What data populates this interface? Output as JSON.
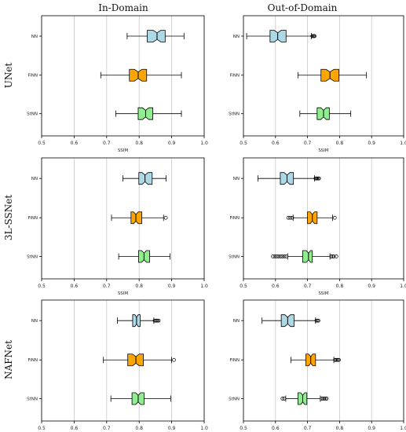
{
  "figure": {
    "column_titles": [
      "In-Domain",
      "Out-of-Domain"
    ],
    "row_titles": [
      "UNet",
      "3L-SSNet",
      "NAFNet"
    ]
  },
  "chart_data": [
    {
      "type": "boxplot",
      "model": "UNet",
      "domain": "In-Domain",
      "xlabel": "SSIM",
      "xlim": [
        0.5,
        1.0
      ],
      "xticks": [
        "0.5",
        "0.6",
        "0.7",
        "0.8",
        "0.9",
        "1.0"
      ],
      "grid": "vertical",
      "categories": [
        "NN",
        "FiNN",
        "StNN"
      ],
      "colors": [
        "#add8e6",
        "#ffa500",
        "#90ee90"
      ],
      "boxes": [
        {
          "label": "NN",
          "whislo": 0.763,
          "q1": 0.825,
          "med": 0.855,
          "q3": 0.88,
          "whishi": 0.938,
          "fliers": []
        },
        {
          "label": "FiNN",
          "whislo": 0.682,
          "q1": 0.77,
          "med": 0.797,
          "q3": 0.823,
          "whishi": 0.93,
          "fliers": []
        },
        {
          "label": "StNN",
          "whislo": 0.728,
          "q1": 0.797,
          "med": 0.82,
          "q3": 0.842,
          "whishi": 0.93,
          "fliers": []
        }
      ]
    },
    {
      "type": "boxplot",
      "model": "UNet",
      "domain": "Out-of-Domain",
      "xlabel": "SSIM",
      "xlim": [
        0.5,
        1.0
      ],
      "xticks": [
        "0.5",
        "0.6",
        "0.7",
        "0.8",
        "0.9",
        "1.0"
      ],
      "grid": "vertical",
      "categories": [
        "NN",
        "FiNN",
        "StNN"
      ],
      "colors": [
        "#add8e6",
        "#ffa500",
        "#90ee90"
      ],
      "boxes": [
        {
          "label": "NN",
          "whislo": 0.51,
          "q1": 0.583,
          "med": 0.607,
          "q3": 0.633,
          "whishi": 0.712,
          "fliers": [
            0.715,
            0.718,
            0.72,
            0.722
          ]
        },
        {
          "label": "FiNN",
          "whislo": 0.67,
          "q1": 0.742,
          "med": 0.77,
          "q3": 0.798,
          "whishi": 0.884,
          "fliers": []
        },
        {
          "label": "StNN",
          "whislo": 0.676,
          "q1": 0.73,
          "med": 0.75,
          "q3": 0.768,
          "whishi": 0.835,
          "fliers": []
        }
      ]
    },
    {
      "type": "boxplot",
      "model": "3L-SSNet",
      "domain": "In-Domain",
      "xlabel": "SSIM",
      "xlim": [
        0.5,
        1.0
      ],
      "xticks": [
        "0.5",
        "0.6",
        "0.7",
        "0.8",
        "0.9",
        "1.0"
      ],
      "grid": "vertical",
      "categories": [
        "NN",
        "FiNN",
        "StNN"
      ],
      "colors": [
        "#add8e6",
        "#ffa500",
        "#90ee90"
      ],
      "boxes": [
        {
          "label": "NN",
          "whislo": 0.75,
          "q1": 0.799,
          "med": 0.818,
          "q3": 0.84,
          "whishi": 0.883,
          "fliers": []
        },
        {
          "label": "FiNN",
          "whislo": 0.715,
          "q1": 0.775,
          "med": 0.79,
          "q3": 0.808,
          "whishi": 0.875,
          "fliers": [
            0.882
          ]
        },
        {
          "label": "StNN",
          "whislo": 0.737,
          "q1": 0.798,
          "med": 0.815,
          "q3": 0.832,
          "whishi": 0.895,
          "fliers": []
        }
      ]
    },
    {
      "type": "boxplot",
      "model": "3L-SSNet",
      "domain": "Out-of-Domain",
      "xlabel": "SSIM",
      "xlim": [
        0.5,
        1.0
      ],
      "xticks": [
        "0.5",
        "0.6",
        "0.7",
        "0.8",
        "0.9",
        "1.0"
      ],
      "grid": "vertical",
      "categories": [
        "NN",
        "FiNN",
        "StNN"
      ],
      "colors": [
        "#add8e6",
        "#ffa500",
        "#90ee90"
      ],
      "boxes": [
        {
          "label": "NN",
          "whislo": 0.545,
          "q1": 0.615,
          "med": 0.636,
          "q3": 0.656,
          "whishi": 0.722,
          "fliers": [
            0.725,
            0.728,
            0.73,
            0.733,
            0.736
          ]
        },
        {
          "label": "FiNN",
          "whislo": 0.655,
          "q1": 0.7,
          "med": 0.715,
          "q3": 0.73,
          "whishi": 0.778,
          "fliers": [
            0.64,
            0.646,
            0.652,
            0.785
          ]
        },
        {
          "label": "StNN",
          "whislo": 0.638,
          "q1": 0.685,
          "med": 0.703,
          "q3": 0.715,
          "whishi": 0.77,
          "fliers": [
            0.592,
            0.598,
            0.604,
            0.61,
            0.616,
            0.622,
            0.628,
            0.634,
            0.774,
            0.778,
            0.782,
            0.79
          ]
        }
      ]
    },
    {
      "type": "boxplot",
      "model": "NAFNet",
      "domain": "In-Domain",
      "xlabel": "SSIM",
      "xlim": [
        0.5,
        1.0
      ],
      "xticks": [
        "0.5",
        "0.6",
        "0.7",
        "0.8",
        "0.9",
        "1.0"
      ],
      "grid": "vertical",
      "categories": [
        "NN",
        "FiNN",
        "StNN"
      ],
      "colors": [
        "#add8e6",
        "#ffa500",
        "#90ee90"
      ],
      "boxes": [
        {
          "label": "NN",
          "whislo": 0.733,
          "q1": 0.78,
          "med": 0.792,
          "q3": 0.803,
          "whishi": 0.845,
          "fliers": [
            0.848,
            0.851,
            0.854,
            0.857,
            0.86
          ]
        },
        {
          "label": "FiNN",
          "whislo": 0.69,
          "q1": 0.765,
          "med": 0.79,
          "q3": 0.813,
          "whishi": 0.9,
          "fliers": [
            0.907
          ]
        },
        {
          "label": "StNN",
          "whislo": 0.713,
          "q1": 0.778,
          "med": 0.797,
          "q3": 0.815,
          "whishi": 0.897,
          "fliers": []
        }
      ]
    },
    {
      "type": "boxplot",
      "model": "NAFNet",
      "domain": "Out-of-Domain",
      "xlabel": "SSIM",
      "xlim": [
        0.5,
        1.0
      ],
      "xticks": [
        "0.5",
        "0.6",
        "0.7",
        "0.8",
        "0.9",
        "1.0"
      ],
      "grid": "vertical",
      "categories": [
        "NN",
        "FiNN",
        "StNN"
      ],
      "colors": [
        "#add8e6",
        "#ffa500",
        "#90ee90"
      ],
      "boxes": [
        {
          "label": "NN",
          "whislo": 0.558,
          "q1": 0.618,
          "med": 0.638,
          "q3": 0.658,
          "whishi": 0.725,
          "fliers": [
            0.728,
            0.731,
            0.734
          ]
        },
        {
          "label": "FiNN",
          "whislo": 0.648,
          "q1": 0.695,
          "med": 0.71,
          "q3": 0.725,
          "whishi": 0.782,
          "fliers": [
            0.786,
            0.789,
            0.792,
            0.795,
            0.798
          ]
        },
        {
          "label": "StNN",
          "whislo": 0.632,
          "q1": 0.67,
          "med": 0.685,
          "q3": 0.698,
          "whishi": 0.74,
          "fliers": [
            0.622,
            0.627,
            0.744,
            0.748,
            0.752,
            0.756,
            0.76
          ]
        }
      ]
    }
  ]
}
